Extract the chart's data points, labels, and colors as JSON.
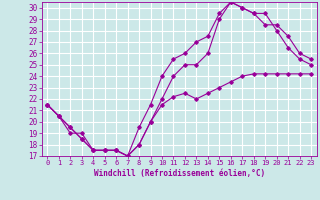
{
  "xlabel": "Windchill (Refroidissement éolien,°C)",
  "bg_color": "#cce8e8",
  "grid_color": "#ffffff",
  "line_color": "#990099",
  "xlim": [
    -0.5,
    23.5
  ],
  "ylim": [
    17,
    30.5
  ],
  "xticks": [
    0,
    1,
    2,
    3,
    4,
    5,
    6,
    7,
    8,
    9,
    10,
    11,
    12,
    13,
    14,
    15,
    16,
    17,
    18,
    19,
    20,
    21,
    22,
    23
  ],
  "yticks": [
    17,
    18,
    19,
    20,
    21,
    22,
    23,
    24,
    25,
    26,
    27,
    28,
    29,
    30
  ],
  "line1_x": [
    0,
    1,
    2,
    3,
    4,
    5,
    6,
    7,
    8,
    9,
    10,
    11,
    12,
    13,
    14,
    15,
    16,
    17,
    18,
    19,
    20,
    21,
    22,
    23
  ],
  "line1_y": [
    21.5,
    20.5,
    19.0,
    19.0,
    17.5,
    17.5,
    17.5,
    17.0,
    18.0,
    20.0,
    21.5,
    22.2,
    22.5,
    22.0,
    22.5,
    23.0,
    23.5,
    24.0,
    24.2,
    24.2,
    24.2,
    24.2,
    24.2,
    24.2
  ],
  "line2_x": [
    0,
    1,
    2,
    3,
    4,
    5,
    6,
    7,
    8,
    9,
    10,
    11,
    12,
    13,
    14,
    15,
    16,
    17,
    18,
    19,
    20,
    21,
    22,
    23
  ],
  "line2_y": [
    21.5,
    20.5,
    19.5,
    18.5,
    17.5,
    17.5,
    17.5,
    17.0,
    19.5,
    21.5,
    24.0,
    25.5,
    26.0,
    27.0,
    27.5,
    29.5,
    30.5,
    30.0,
    29.5,
    28.5,
    28.5,
    27.5,
    26.0,
    25.5
  ],
  "line3_x": [
    0,
    1,
    2,
    3,
    4,
    5,
    6,
    7,
    8,
    9,
    10,
    11,
    12,
    13,
    14,
    15,
    16,
    17,
    18,
    19,
    20,
    21,
    22,
    23
  ],
  "line3_y": [
    21.5,
    20.5,
    19.5,
    18.5,
    17.5,
    17.5,
    17.5,
    17.0,
    18.0,
    20.0,
    22.0,
    24.0,
    25.0,
    25.0,
    26.0,
    29.0,
    30.5,
    30.0,
    29.5,
    29.5,
    28.0,
    26.5,
    25.5,
    25.0
  ]
}
